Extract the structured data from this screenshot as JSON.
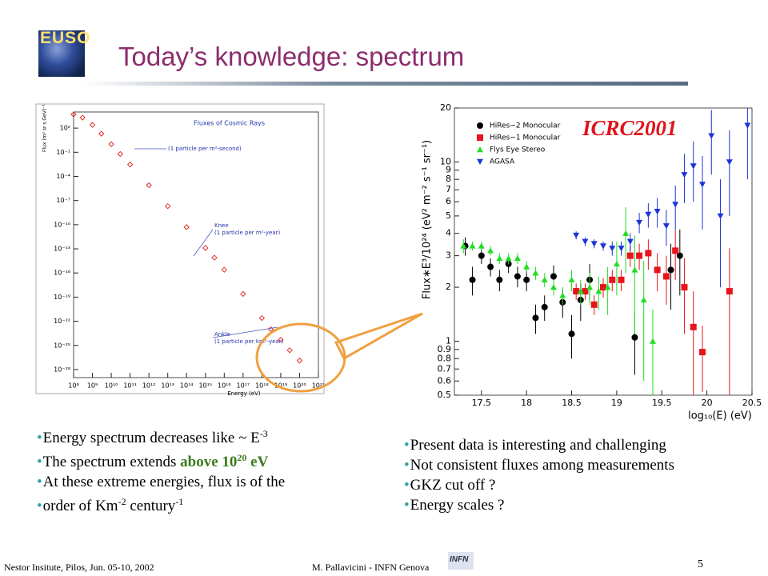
{
  "logo": "EUSO",
  "title": "Today’s knowledge: spectrum",
  "bullets_left": [
    [
      {
        "text": "Energy spectrum decreases like ~ E"
      },
      {
        "text": "-3",
        "sup": true
      }
    ],
    [
      {
        "text": "The spectrum extends "
      },
      {
        "text": "above 10",
        "em": true
      },
      {
        "text": "20",
        "em": true,
        "sup": true
      },
      {
        "text": " eV",
        "em": true
      }
    ],
    [
      {
        "text": "At these extreme energies, flux is of the"
      }
    ],
    [
      {
        "text": "order of Km"
      },
      {
        "text": "-2",
        "sup": true
      },
      {
        "text": " century"
      },
      {
        "text": "-1",
        "sup": true
      }
    ]
  ],
  "bullets_right": [
    [
      {
        "text": "Present data is interesting and challenging"
      }
    ],
    [
      {
        "text": "Not consistent fluxes among measurements"
      }
    ],
    [
      {
        "text": "GKZ cut off ?"
      }
    ],
    [
      {
        "text": "Energy scales ?"
      }
    ]
  ],
  "footer": {
    "left": "Nestor Insitute, Pilos, Jun. 05-10, 2002",
    "center": "M. Pallavicini - INFN Genova",
    "logo": "INFN",
    "page": "5"
  },
  "chart_data": [
    {
      "type": "scatter",
      "title": "Fluxes of Cosmic Rays",
      "xlabel": "Energy (eV)",
      "ylabel": "Flux (m² sr s GeV)⁻¹",
      "annotations": [
        "(1 particle per m²-second)",
        "Knee",
        "(1 particle per m²-year)",
        "Ankle",
        "(1 particle per km²-year)"
      ],
      "xlog": true,
      "ylog": true,
      "marker": "diamond-open",
      "color": "#e0302a",
      "x": [
        100000000.0,
        300000000.0,
        1000000000.0,
        3000000000.0,
        10000000000.0,
        30000000000.0,
        100000000000.0,
        1000000000000.0,
        10000000000000.0,
        100000000000000.0,
        1000000000000000.0,
        3000000000000000.0,
        1e+16,
        1e+17,
        1e+18,
        3e+18,
        1e+19,
        3e+19,
        1e+20
      ],
      "values": [
        5000.0,
        2000.0,
        250.0,
        20.0,
        1,
        0.06,
        0.003,
        8e-06,
        2e-08,
        5e-11,
        1.3e-13,
        8e-15,
        2.5e-16,
        2.5e-19,
        2.5e-22,
        1e-23,
        5e-25,
        2.5e-26,
        1.3e-27
      ],
      "xlim": [
        100000000.0,
        1e+21
      ],
      "xticks": [
        {
          "value": 100000000.0,
          "label": "10⁸"
        },
        {
          "value": 1000000000.0,
          "label": "10⁹"
        },
        {
          "value": 10000000000.0,
          "label": "10¹⁰"
        },
        {
          "value": 100000000000.0,
          "label": "10¹¹"
        },
        {
          "value": 1000000000000.0,
          "label": "10¹²"
        },
        {
          "value": 10000000000000.0,
          "label": "10¹³"
        },
        {
          "value": 100000000000000.0,
          "label": "10¹⁴"
        },
        {
          "value": 1000000000000000.0,
          "label": "10¹⁵"
        },
        {
          "value": 1e+16,
          "label": "10¹⁶"
        },
        {
          "value": 1e+17,
          "label": "10¹⁷"
        },
        {
          "value": 1e+18,
          "label": "10¹⁸"
        },
        {
          "value": 1e+19,
          "label": "10¹⁹"
        },
        {
          "value": 1e+20,
          "label": "10²⁰"
        },
        {
          "value": 1e+21,
          "label": "10²¹"
        }
      ],
      "ylim": [
        1e-29,
        10000.0
      ],
      "yticks": [
        {
          "value": 1e-28,
          "label": "10⁻²⁸"
        },
        {
          "value": 1e-25,
          "label": "10⁻²⁵"
        },
        {
          "value": 1e-22,
          "label": "10⁻²²"
        },
        {
          "value": 1e-19,
          "label": "10⁻¹⁹"
        },
        {
          "value": 1e-16,
          "label": "10⁻¹⁶"
        },
        {
          "value": 1e-13,
          "label": "10⁻¹³"
        },
        {
          "value": 1e-10,
          "label": "10⁻¹⁰"
        },
        {
          "value": 1e-07,
          "label": "10⁻⁷"
        },
        {
          "value": 0.0001,
          "label": "10⁻⁴"
        },
        {
          "value": 0.1,
          "label": "10⁻¹"
        },
        {
          "value": 100.0,
          "label": "10²"
        }
      ]
    },
    {
      "type": "scatter",
      "annotation": "ICRC2001",
      "xlabel": "log₁₀(E) (eV)",
      "ylabel": "Flux∗E³/10²⁴ (eV² m⁻² s⁻¹ sr⁻¹)",
      "xlog": false,
      "ylog": true,
      "series": [
        {
          "name": "HiRes−2 Monocular",
          "color": "#000000",
          "marker": "circle",
          "x": [
            17.32,
            17.4,
            17.5,
            17.6,
            17.7,
            17.8,
            17.9,
            18.0,
            18.1,
            18.2,
            18.3,
            18.4,
            18.5,
            18.6,
            18.7,
            19.2,
            19.6,
            19.7
          ],
          "values": [
            3.4,
            2.2,
            3.0,
            2.6,
            2.2,
            2.7,
            2.3,
            2.2,
            1.35,
            1.55,
            2.3,
            1.65,
            1.1,
            1.7,
            2.2,
            1.05,
            2.5,
            3.0
          ],
          "errors": [
            0.4,
            0.4,
            0.3,
            0.3,
            0.3,
            0.3,
            0.3,
            0.3,
            0.25,
            0.25,
            0.35,
            0.3,
            0.3,
            0.4,
            0.5,
            0.4,
            1.0,
            1.2
          ]
        },
        {
          "name": "HiRes−1 Monocular",
          "color": "#e8131b",
          "marker": "square",
          "x": [
            18.55,
            18.65,
            18.75,
            18.85,
            18.95,
            19.05,
            19.15,
            19.25,
            19.35,
            19.45,
            19.55,
            19.65,
            19.75,
            19.85,
            19.95,
            20.25
          ],
          "values": [
            1.9,
            1.9,
            1.6,
            2.0,
            2.2,
            2.2,
            3.0,
            3.0,
            3.1,
            2.5,
            2.3,
            3.2,
            2.0,
            1.2,
            0.87,
            1.9
          ],
          "errors": [
            0.2,
            0.2,
            0.2,
            0.25,
            0.3,
            0.3,
            0.4,
            0.5,
            0.6,
            0.6,
            0.7,
            1.0,
            0.9,
            0.7,
            0.35,
            1.4
          ]
        },
        {
          "name": "Flys Eye Stereo",
          "color": "#22dd22",
          "marker": "triangle",
          "x": [
            17.3,
            17.4,
            17.5,
            17.6,
            17.7,
            17.8,
            17.9,
            18.0,
            18.1,
            18.2,
            18.3,
            18.4,
            18.5,
            18.6,
            18.7,
            18.8,
            18.9,
            19.0,
            19.1,
            19.2,
            19.3,
            19.4
          ],
          "values": [
            3.4,
            3.4,
            3.4,
            3.2,
            2.9,
            2.9,
            2.9,
            2.6,
            2.4,
            2.2,
            2.0,
            1.8,
            2.2,
            1.9,
            2.0,
            1.9,
            2.0,
            2.7,
            4.0,
            2.5,
            1.7,
            1.0
          ],
          "errors": [
            0.3,
            0.2,
            0.2,
            0.2,
            0.2,
            0.2,
            0.2,
            0.2,
            0.2,
            0.2,
            0.2,
            0.2,
            0.3,
            0.3,
            0.4,
            0.4,
            0.6,
            0.9,
            1.6,
            1.4,
            1.1,
            0.5
          ]
        },
        {
          "name": "AGASA",
          "color": "#1c34d8",
          "marker": "triangle-down",
          "x": [
            18.55,
            18.65,
            18.75,
            18.85,
            18.95,
            19.05,
            19.15,
            19.25,
            19.35,
            19.45,
            19.55,
            19.65,
            19.75,
            19.85,
            19.95,
            20.05,
            20.15,
            20.25,
            20.45
          ],
          "values": [
            3.9,
            3.6,
            3.5,
            3.4,
            3.3,
            3.3,
            3.6,
            4.6,
            5.1,
            5.3,
            4.4,
            5.8,
            8.5,
            9.5,
            7.5,
            14,
            5.0,
            10,
            16
          ],
          "errors": [
            0.2,
            0.2,
            0.2,
            0.2,
            0.3,
            0.3,
            0.4,
            0.6,
            0.8,
            1.0,
            1.0,
            1.6,
            2.6,
            3.5,
            3.3,
            5.5,
            3.0,
            5.0,
            8.0
          ]
        }
      ],
      "xlim": [
        17.2,
        20.5
      ],
      "xticks": [
        {
          "value": 17.5,
          "label": "17.5"
        },
        18,
        {
          "value": 18.5,
          "label": "18.5"
        },
        19,
        {
          "value": 19.5,
          "label": "19.5"
        },
        20,
        {
          "value": 20.5,
          "label": "20.5"
        }
      ],
      "ylim": [
        0.5,
        20
      ],
      "yticks": [
        0.5,
        0.6,
        0.7,
        0.8,
        0.9,
        1,
        2,
        3,
        4,
        5,
        6,
        7,
        8,
        9,
        10,
        20
      ]
    }
  ]
}
